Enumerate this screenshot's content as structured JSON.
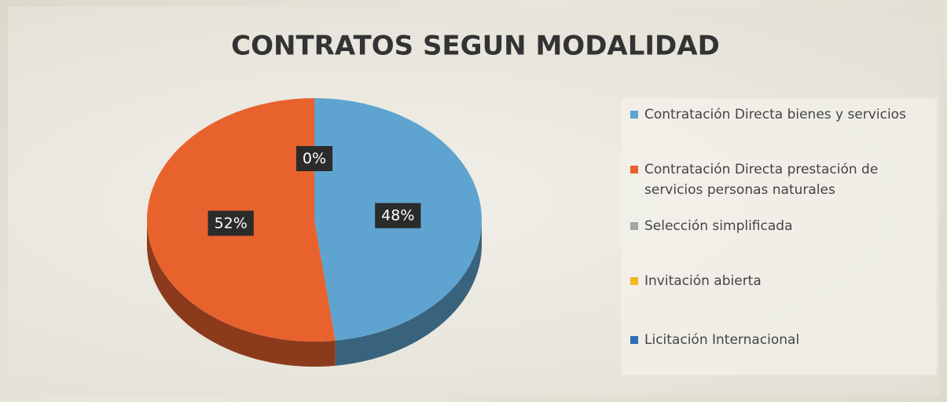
{
  "chart_data": {
    "type": "pie",
    "title": "CONTRATOS SEGUN MODALIDAD",
    "categories": [
      "Contratación Directa bienes y servicios",
      "Contratación Directa prestación de servicios personas naturales",
      "Selección simplificada",
      "Invitación abierta",
      "Licitación Internacional"
    ],
    "values": [
      48,
      52,
      0,
      0,
      0
    ],
    "value_labels": [
      "48%",
      "52%",
      "0%",
      null,
      null
    ],
    "colors": [
      "#5fa4d0",
      "#e8622d",
      "#a5a5a5",
      "#f4b81e",
      "#2f6fb4"
    ],
    "legend": "right"
  }
}
